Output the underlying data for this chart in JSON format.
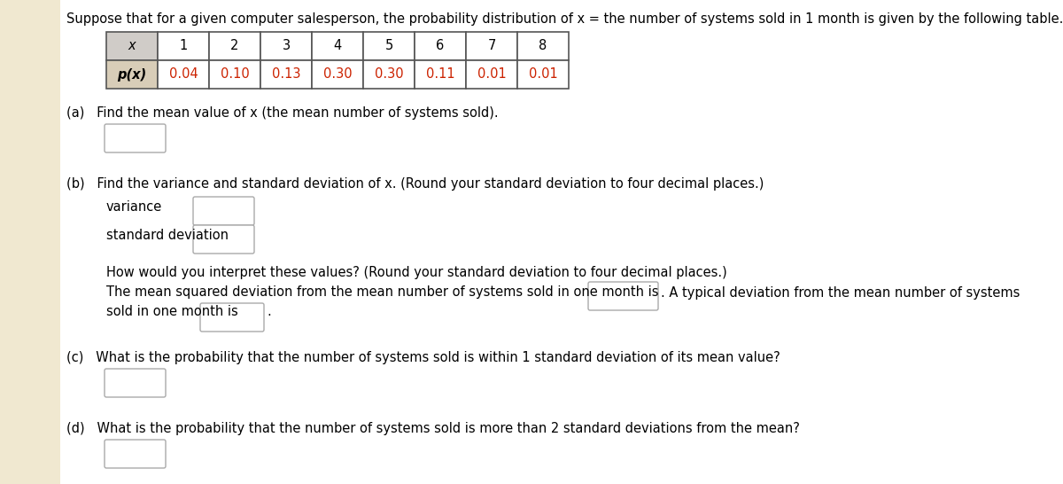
{
  "title": "Suppose that for a given computer salesperson, the probability distribution of x = the number of systems sold in 1 month is given by the following table.",
  "x_values": [
    "x",
    "1",
    "2",
    "3",
    "4",
    "5",
    "6",
    "7",
    "8"
  ],
  "p_values": [
    "p(x)",
    "0.04",
    "0.10",
    "0.13",
    "0.30",
    "0.30",
    "0.11",
    "0.01",
    "0.01"
  ],
  "table_header_bg": "#d0ccc8",
  "table_px_bg": "#d8cdb8",
  "table_value_bg": "#ffffff",
  "table_border": "#555555",
  "p_value_color": "#cc2200",
  "part_a_text": "(a)   Find the mean value of x (the mean number of systems sold).",
  "part_b_text": "(b)   Find the variance and standard deviation of x. (Round your standard deviation to four decimal places.)",
  "part_b_variance": "variance",
  "part_b_stddev": "standard deviation",
  "part_b_interpret": "How would you interpret these values? (Round your standard deviation to four decimal places.)",
  "part_b_mean_sq": "The mean squared deviation from the mean number of systems sold in one month is",
  "part_b_typical": ". A typical deviation from the mean number of systems",
  "part_b_sold": "sold in one month is",
  "part_c_text": "(c)   What is the probability that the number of systems sold is within 1 standard deviation of its mean value?",
  "part_d_text": "(d)   What is the probability that the number of systems sold is more than 2 standard deviations from the mean?",
  "bg_color": "#ffffff",
  "left_strip_color": "#f0e8d0",
  "text_color": "#000000",
  "font_size": 10.5,
  "input_box_color": "#ffffff",
  "input_box_border": "#aaaaaa"
}
